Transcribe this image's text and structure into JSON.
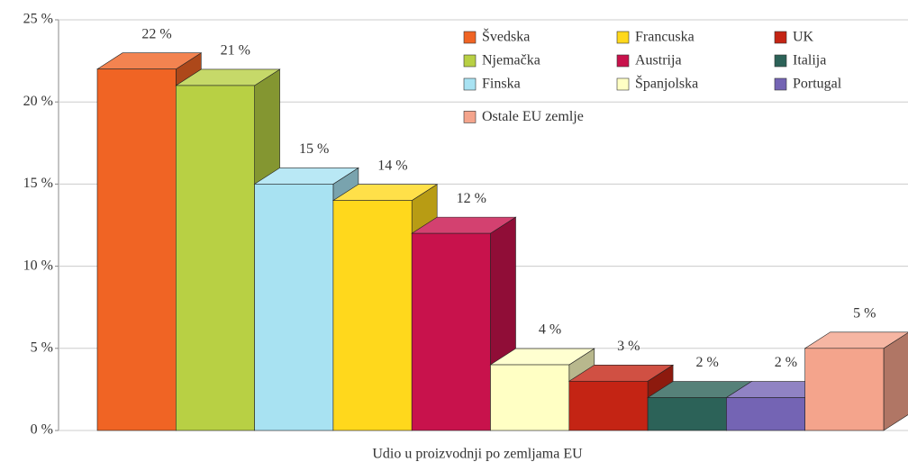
{
  "chart_data": {
    "type": "bar3d",
    "xlabel": "Udio u proizvodnji po zemljama EU",
    "categories": [
      "Švedska",
      "Njemačka",
      "Finska",
      "Francuska",
      "Austrija",
      "Španjolska",
      "UK",
      "Italija",
      "Portugal",
      "Ostale EU zemlje"
    ],
    "values": [
      22,
      21,
      15,
      14,
      12,
      4,
      3,
      2,
      2,
      5
    ],
    "value_labels": [
      "22 %",
      "21 %",
      "15 %",
      "14 %",
      "12 %",
      "4 %",
      "3 %",
      "2 %",
      "2 %",
      "5 %"
    ],
    "colors": [
      "#f06424",
      "#b8d044",
      "#a8e2f2",
      "#ffd81c",
      "#c8124c",
      "#ffffc4",
      "#c42414",
      "#2c6258",
      "#7464b4",
      "#f4a48c"
    ],
    "ylim": [
      0,
      25
    ],
    "yticks": [
      {
        "value": 0,
        "label": "0 %"
      },
      {
        "value": 5,
        "label": "5 %"
      },
      {
        "value": 10,
        "label": "10 %"
      },
      {
        "value": 15,
        "label": "15 %"
      },
      {
        "value": 20,
        "label": "20 %"
      },
      {
        "value": 25,
        "label": "25 %"
      }
    ],
    "grid": true,
    "legend": "upper right"
  }
}
